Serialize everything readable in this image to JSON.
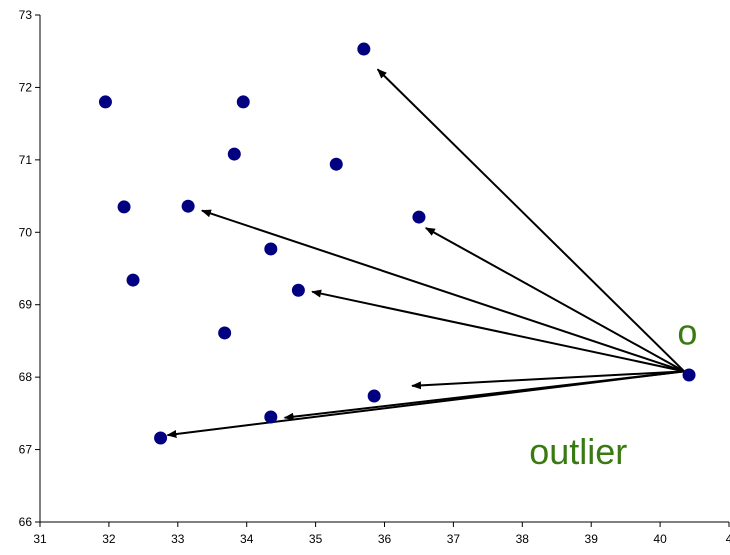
{
  "chart_data": {
    "type": "scatter",
    "title": "",
    "xlabel": "",
    "ylabel": "",
    "xlim": [
      31,
      41
    ],
    "ylim": [
      66,
      73
    ],
    "xticks": [
      "31",
      "32",
      "33",
      "34",
      "35",
      "36",
      "37",
      "38",
      "39",
      "40",
      "4"
    ],
    "yticks": [
      "66",
      "67",
      "68",
      "69",
      "70",
      "71",
      "72",
      "73"
    ],
    "grid": false,
    "legend": "none",
    "colors": {
      "point": "#000080",
      "arrow": "#000000",
      "annotation": "#3a7a12"
    },
    "points": [
      {
        "x": 31.95,
        "y": 71.8
      },
      {
        "x": 32.22,
        "y": 70.35
      },
      {
        "x": 32.35,
        "y": 69.34
      },
      {
        "x": 32.75,
        "y": 67.16
      },
      {
        "x": 33.15,
        "y": 70.36
      },
      {
        "x": 33.68,
        "y": 68.61
      },
      {
        "x": 33.82,
        "y": 71.08
      },
      {
        "x": 33.95,
        "y": 71.8
      },
      {
        "x": 34.35,
        "y": 69.77
      },
      {
        "x": 34.35,
        "y": 67.45
      },
      {
        "x": 34.75,
        "y": 69.2
      },
      {
        "x": 35.3,
        "y": 70.94
      },
      {
        "x": 35.7,
        "y": 72.53
      },
      {
        "x": 35.85,
        "y": 67.74
      },
      {
        "x": 36.5,
        "y": 70.21
      },
      {
        "x": 40.42,
        "y": 68.03
      }
    ],
    "arrows": [
      {
        "from": [
          40.35,
          68.08
        ],
        "to": [
          35.9,
          72.25
        ]
      },
      {
        "from": [
          40.35,
          68.08
        ],
        "to": [
          36.6,
          70.06
        ]
      },
      {
        "from": [
          40.35,
          68.08
        ],
        "to": [
          33.35,
          70.3
        ]
      },
      {
        "from": [
          40.35,
          68.08
        ],
        "to": [
          34.95,
          69.18
        ]
      },
      {
        "from": [
          40.35,
          68.08
        ],
        "to": [
          36.4,
          67.88
        ]
      },
      {
        "from": [
          40.35,
          68.08
        ],
        "to": [
          34.55,
          67.44
        ]
      },
      {
        "from": [
          40.35,
          68.08
        ],
        "to": [
          32.85,
          67.2
        ]
      }
    ],
    "annotations": [
      {
        "text": "o",
        "x": 40.25,
        "y": 68.45
      },
      {
        "text": "outlier",
        "x": 38.1,
        "y": 66.8
      }
    ]
  }
}
